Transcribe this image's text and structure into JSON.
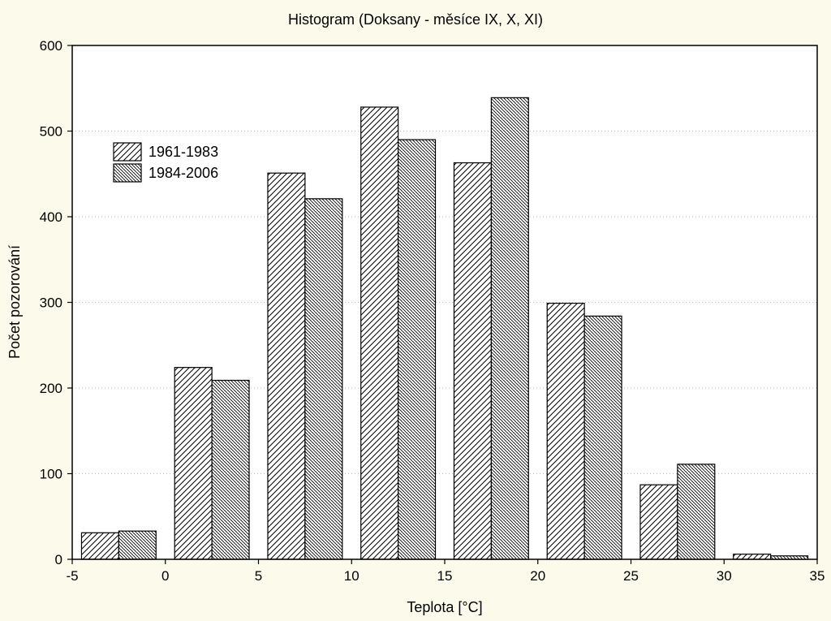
{
  "chart_data": {
    "type": "bar",
    "title": "Histogram (Doksany - měsíce IX, X, XI)",
    "xlabel": "Teplota [°C]",
    "ylabel": "Počet pozorování",
    "bin_edges": [
      -5,
      0,
      5,
      10,
      15,
      20,
      25,
      30,
      35
    ],
    "xlim": [
      -5,
      35
    ],
    "ylim": [
      0,
      600
    ],
    "x_ticks": [
      -5,
      0,
      5,
      10,
      15,
      20,
      25,
      30,
      35
    ],
    "x_tick_labels": [
      "-5",
      "0",
      "5",
      "10",
      "15",
      "20",
      "25",
      "30",
      "35"
    ],
    "y_ticks": [
      0,
      100,
      200,
      300,
      400,
      500,
      600
    ],
    "y_tick_labels": [
      "0",
      "100",
      "200",
      "300",
      "400",
      "500",
      "600"
    ],
    "grid": "horizontal dotted",
    "legend_position": "top-left",
    "series": [
      {
        "name": "1961-1983",
        "pattern": "diagonal-up",
        "values": [
          31,
          224,
          451,
          528,
          463,
          299,
          87,
          6
        ]
      },
      {
        "name": "1984-2006",
        "pattern": "diagonal-down",
        "values": [
          33,
          209,
          421,
          490,
          539,
          284,
          111,
          4
        ]
      }
    ]
  },
  "colors": {
    "background": "#fcfaea",
    "plot_area": "#ffffff",
    "bar_stroke": "#000000",
    "grid": "#bbbbbb"
  }
}
